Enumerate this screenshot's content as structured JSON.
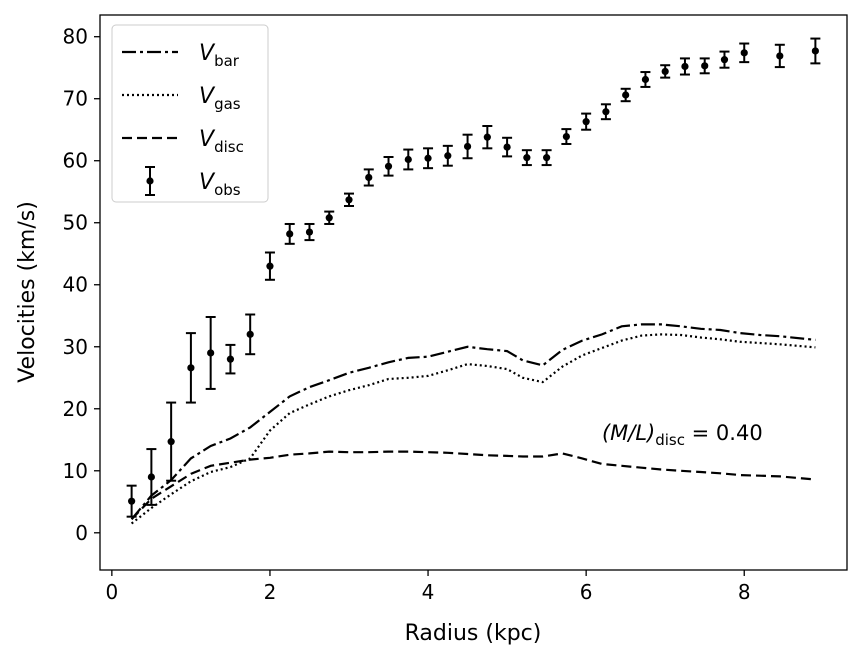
{
  "chart_data": {
    "type": "line",
    "xlabel": "Radius (kpc)",
    "ylabel": "Velocities (km/s)",
    "xlim": [
      -0.15,
      9.3
    ],
    "ylim": [
      -6,
      83.5
    ],
    "xticks": [
      0,
      2,
      4,
      6,
      8
    ],
    "yticks": [
      0,
      10,
      20,
      30,
      40,
      50,
      60,
      70,
      80
    ],
    "annotation": {
      "prefix": "(M/L)",
      "sub": "disc",
      "suffix": " = 0.40",
      "x": 6.2,
      "y": 15
    },
    "legend": {
      "placement": "upper-left",
      "entries": [
        {
          "name": "V",
          "sub": "bar",
          "style": "dashdot"
        },
        {
          "name": "V",
          "sub": "gas",
          "style": "dotted"
        },
        {
          "name": "V",
          "sub": "disc",
          "style": "dashed"
        },
        {
          "name": "V",
          "sub": "obs",
          "style": "errorbar"
        }
      ]
    },
    "series": [
      {
        "name": "V_bar",
        "style": "dashdot",
        "x": [
          0.25,
          0.5,
          0.75,
          1.0,
          1.25,
          1.5,
          1.75,
          2.0,
          2.25,
          2.5,
          2.75,
          3.0,
          3.25,
          3.5,
          3.75,
          4.0,
          4.25,
          4.5,
          4.75,
          5.0,
          5.2,
          5.45,
          5.7,
          5.95,
          6.2,
          6.45,
          6.7,
          6.95,
          7.2,
          7.45,
          7.7,
          7.95,
          8.2,
          8.45,
          8.9
        ],
        "y": [
          2.2,
          6,
          8.5,
          12,
          14,
          15.2,
          17,
          19.5,
          22,
          23.5,
          24.6,
          25.8,
          26.6,
          27.5,
          28.2,
          28.4,
          29.2,
          30,
          29.6,
          29.3,
          27.8,
          27,
          29.5,
          31,
          32,
          33.3,
          33.6,
          33.6,
          33.3,
          32.9,
          32.7,
          32.2,
          31.9,
          31.7,
          31.1
        ]
      },
      {
        "name": "V_gas",
        "style": "dotted",
        "x": [
          0.25,
          0.5,
          0.75,
          1.0,
          1.25,
          1.5,
          1.75,
          2.0,
          2.25,
          2.5,
          2.75,
          3.0,
          3.25,
          3.5,
          3.75,
          4.0,
          4.25,
          4.5,
          4.75,
          5.0,
          5.2,
          5.45,
          5.7,
          5.95,
          6.2,
          6.45,
          6.7,
          6.95,
          7.2,
          7.45,
          7.7,
          7.95,
          8.2,
          8.45,
          8.9
        ],
        "y": [
          1.5,
          4,
          6.2,
          8.3,
          9.8,
          10.6,
          12,
          16.5,
          19.3,
          20.7,
          22,
          23,
          23.8,
          24.8,
          25,
          25.3,
          26.2,
          27.2,
          26.9,
          26.4,
          25,
          24.3,
          26.8,
          28.6,
          29.8,
          31,
          31.8,
          32,
          31.9,
          31.5,
          31.2,
          30.8,
          30.6,
          30.4,
          29.9
        ]
      },
      {
        "name": "V_disc",
        "style": "dashed",
        "x": [
          0.25,
          0.5,
          0.75,
          1.0,
          1.25,
          1.5,
          1.75,
          2.0,
          2.25,
          2.5,
          2.75,
          3.0,
          3.25,
          3.5,
          3.75,
          4.0,
          4.25,
          4.5,
          4.75,
          5.0,
          5.2,
          5.45,
          5.7,
          5.95,
          6.2,
          6.45,
          6.7,
          6.95,
          7.2,
          7.45,
          7.7,
          7.95,
          8.2,
          8.45,
          8.9
        ],
        "y": [
          2.2,
          5.5,
          7.5,
          9.5,
          10.8,
          11.3,
          11.8,
          12.1,
          12.6,
          12.8,
          13.1,
          13,
          13,
          13.1,
          13.1,
          13,
          12.9,
          12.7,
          12.5,
          12.4,
          12.3,
          12.3,
          12.8,
          12,
          11.1,
          10.8,
          10.5,
          10.2,
          10,
          9.8,
          9.6,
          9.3,
          9.2,
          9.1,
          8.6
        ]
      },
      {
        "name": "V_obs",
        "style": "errorbar",
        "x": [
          0.25,
          0.5,
          0.75,
          1.0,
          1.25,
          1.5,
          1.75,
          2.0,
          2.25,
          2.5,
          2.75,
          3.0,
          3.25,
          3.5,
          3.75,
          4.0,
          4.25,
          4.5,
          4.75,
          5.0,
          5.25,
          5.5,
          5.75,
          6.0,
          6.25,
          6.5,
          6.75,
          7.0,
          7.25,
          7.5,
          7.75,
          8.0,
          8.45,
          8.9
        ],
        "y": [
          5.1,
          9,
          14.7,
          26.6,
          29,
          28,
          32,
          43,
          48.2,
          48.5,
          50.8,
          53.7,
          57.3,
          59.1,
          60.2,
          60.4,
          60.8,
          62.3,
          63.8,
          62.2,
          60.5,
          60.5,
          63.9,
          66.3,
          67.9,
          70.6,
          73.1,
          74.4,
          75.2,
          75.3,
          76.3,
          77.4,
          76.9,
          77.7
        ],
        "err": [
          2.5,
          4.5,
          6.3,
          5.6,
          5.8,
          2.3,
          3.2,
          2.2,
          1.6,
          1.3,
          1.0,
          1.0,
          1.3,
          1.5,
          1.6,
          1.6,
          1.6,
          1.9,
          1.8,
          1.5,
          1.2,
          1.2,
          1.2,
          1.3,
          1.2,
          1.0,
          1.2,
          1.0,
          1.3,
          1.2,
          1.3,
          1.5,
          1.8,
          2.0
        ]
      }
    ]
  }
}
